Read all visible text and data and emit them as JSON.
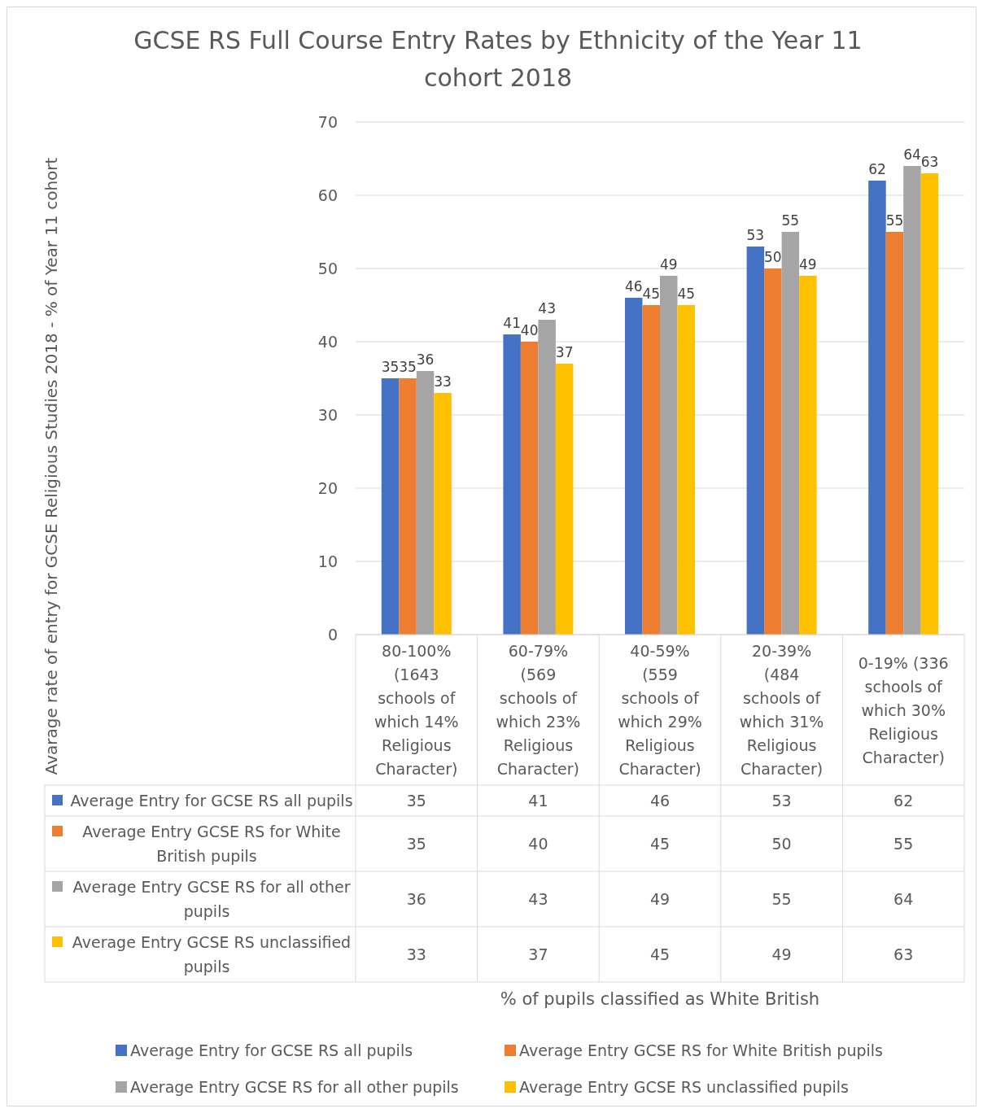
{
  "chart_data": {
    "type": "bar",
    "title": "GCSE RS Full Course Entry Rates by Ethnicity of the Year 11 cohort 2018",
    "categories": [
      "80-100% (1643 schools of which 14% Religious Character)",
      "60-79% (569 schools of which 23% Religious Character)",
      "40-59% (559 schools of which 29% Religious Character)",
      "20-39% (484 schools of which 31% Religious Character)",
      "0-19% (336 schools of which 30% Religious Character)"
    ],
    "series": [
      {
        "name": "Average Entry for GCSE RS all pupils",
        "color": "#4472c4",
        "values": [
          35,
          41,
          46,
          53,
          62
        ],
        "value_labels": [
          "35",
          "41",
          "46",
          "53",
          "62"
        ]
      },
      {
        "name": "Average Entry GCSE RS for White British pupils",
        "color": "#ed7d31",
        "values": [
          35,
          40,
          45,
          50,
          55
        ],
        "value_labels": [
          "35",
          "40",
          "45",
          "50",
          "55"
        ]
      },
      {
        "name": "Average Entry GCSE RS for all other pupils",
        "color": "#a5a5a5",
        "values": [
          36,
          43,
          49,
          55,
          64
        ],
        "value_labels": [
          "36",
          "43",
          "49",
          "55",
          "64"
        ]
      },
      {
        "name": "Average Entry GCSE RS unclassified pupils",
        "color": "#ffc000",
        "values": [
          33,
          37,
          45,
          49,
          63
        ],
        "value_labels": [
          "33",
          "37",
          "45",
          "49",
          "63"
        ]
      }
    ],
    "annotations": [
      "35",
      "41",
      "46",
      "53",
      "62",
      "35",
      "40",
      "45",
      "50",
      "55",
      "36",
      "43",
      "49",
      "55",
      "64",
      "33",
      "37",
      "45",
      "49",
      "63",
      "Avarage rate of entry for GCSE Religious Studies 2018 - % of Year 11 cohort",
      "% of pupils classified as White British"
    ],
    "ylim": [
      0,
      70
    ],
    "yticks": [
      0,
      10,
      20,
      30,
      40,
      50,
      60,
      70
    ],
    "grid": "y",
    "data_labels": true,
    "legend": "bottom"
  }
}
